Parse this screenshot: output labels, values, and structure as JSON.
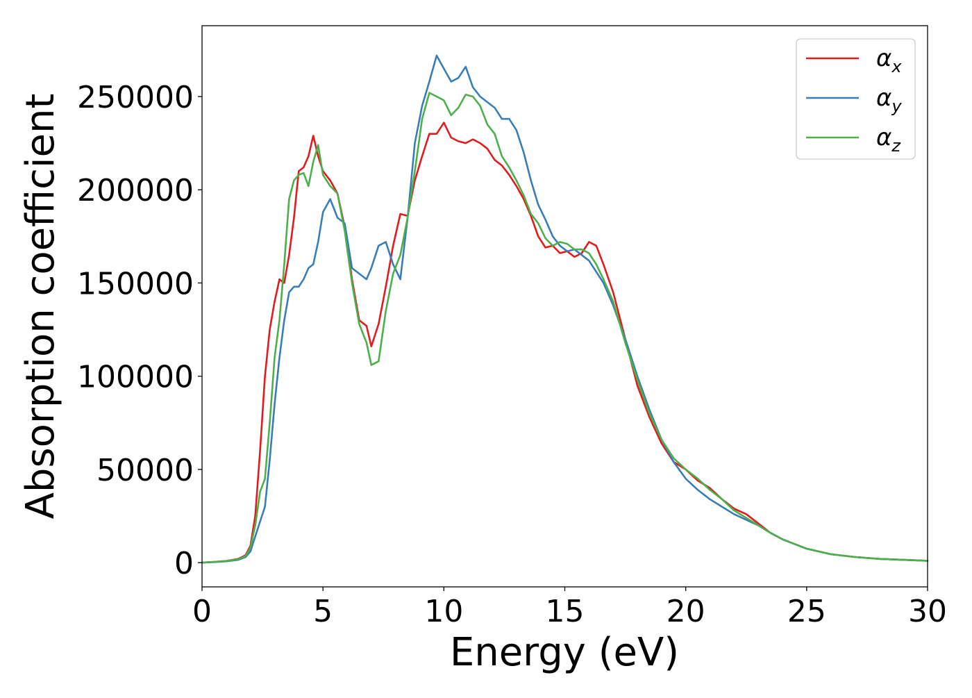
{
  "chart_data": {
    "type": "line",
    "title": "",
    "xlabel": "Energy (eV)",
    "ylabel": "Absorption coefficient",
    "xlim": [
      0,
      30
    ],
    "ylim": [
      -13000,
      288000
    ],
    "xticks": [
      0,
      5,
      10,
      15,
      20,
      25,
      30
    ],
    "xtick_labels": [
      "0",
      "5",
      "10",
      "15",
      "20",
      "25",
      "30"
    ],
    "yticks": [
      0,
      50000,
      100000,
      150000,
      200000,
      250000
    ],
    "ytick_labels": [
      "0",
      "50000",
      "100000",
      "150000",
      "200000",
      "250000"
    ],
    "grid": false,
    "legend_position": "top-right",
    "x": [
      0,
      0.5,
      1.0,
      1.5,
      1.8,
      2.0,
      2.2,
      2.4,
      2.6,
      2.8,
      3.0,
      3.2,
      3.4,
      3.6,
      3.8,
      4.0,
      4.2,
      4.4,
      4.6,
      4.8,
      5.0,
      5.3,
      5.6,
      5.9,
      6.2,
      6.5,
      6.8,
      7.0,
      7.3,
      7.6,
      7.9,
      8.2,
      8.5,
      8.8,
      9.1,
      9.4,
      9.7,
      10.0,
      10.3,
      10.6,
      10.9,
      11.2,
      11.5,
      11.8,
      12.1,
      12.4,
      12.7,
      13.0,
      13.3,
      13.6,
      13.9,
      14.2,
      14.5,
      14.8,
      15.1,
      15.4,
      15.7,
      16.0,
      16.3,
      16.6,
      17.0,
      17.5,
      18.0,
      18.5,
      19.0,
      19.5,
      20.0,
      20.5,
      21.0,
      21.5,
      22.0,
      22.5,
      23.0,
      23.5,
      24.0,
      25.0,
      26.0,
      27.0,
      28.0,
      29.0,
      30.0
    ],
    "series": [
      {
        "name": "α_x",
        "label_main": "α",
        "label_sub": "x",
        "color": "#e41a1c",
        "values": [
          0,
          400,
          900,
          2000,
          4000,
          9000,
          25000,
          60000,
          100000,
          125000,
          140000,
          152000,
          150000,
          165000,
          185000,
          210000,
          212000,
          218000,
          229000,
          218000,
          210000,
          205000,
          198000,
          180000,
          152000,
          130000,
          127000,
          116000,
          128000,
          148000,
          170000,
          187000,
          186000,
          205000,
          218000,
          230000,
          230000,
          236000,
          228000,
          226000,
          225000,
          227000,
          225000,
          222000,
          216000,
          213000,
          208000,
          202000,
          195000,
          186000,
          175000,
          169000,
          170000,
          166000,
          167000,
          164000,
          166000,
          172000,
          170000,
          160000,
          145000,
          120000,
          95000,
          78000,
          64000,
          54000,
          50000,
          44000,
          40000,
          34000,
          29000,
          26000,
          21000,
          16000,
          12500,
          7500,
          4500,
          3000,
          2000,
          1500,
          1000
        ]
      },
      {
        "name": "α_y",
        "label_main": "α",
        "label_sub": "y",
        "color": "#377eb8",
        "values": [
          0,
          300,
          700,
          1500,
          3000,
          6000,
          14000,
          22000,
          30000,
          55000,
          85000,
          110000,
          130000,
          145000,
          148000,
          148000,
          152000,
          158000,
          160000,
          172000,
          188000,
          195000,
          185000,
          182000,
          158000,
          155000,
          152000,
          158000,
          170000,
          172000,
          160000,
          152000,
          185000,
          225000,
          245000,
          258000,
          272000,
          265000,
          258000,
          260000,
          266000,
          255000,
          250000,
          247000,
          244000,
          238000,
          238000,
          232000,
          220000,
          205000,
          192000,
          184000,
          175000,
          170000,
          167000,
          168000,
          165000,
          162000,
          156000,
          150000,
          138000,
          120000,
          100000,
          82000,
          66000,
          54000,
          45000,
          39000,
          34000,
          30000,
          26000,
          23000,
          20000,
          16000,
          12500,
          7500,
          4500,
          3000,
          2000,
          1500,
          1000
        ]
      },
      {
        "name": "α_z",
        "label_main": "α",
        "label_sub": "z",
        "color": "#4daf4a",
        "values": [
          0,
          400,
          900,
          1800,
          3500,
          8000,
          20000,
          38000,
          45000,
          75000,
          110000,
          130000,
          160000,
          195000,
          205000,
          208000,
          209000,
          202000,
          215000,
          224000,
          208000,
          202000,
          198000,
          178000,
          150000,
          128000,
          118000,
          106000,
          108000,
          135000,
          155000,
          165000,
          185000,
          210000,
          238000,
          252000,
          250000,
          248000,
          240000,
          244000,
          251000,
          250000,
          245000,
          235000,
          230000,
          218000,
          212000,
          205000,
          197000,
          187000,
          182000,
          174000,
          170000,
          172000,
          171000,
          168000,
          168000,
          166000,
          160000,
          152000,
          140000,
          118000,
          98000,
          80000,
          66000,
          56000,
          50000,
          45000,
          39000,
          34000,
          28000,
          24000,
          20000,
          16000,
          12500,
          7500,
          4500,
          3000,
          2000,
          1500,
          1000
        ]
      }
    ]
  }
}
